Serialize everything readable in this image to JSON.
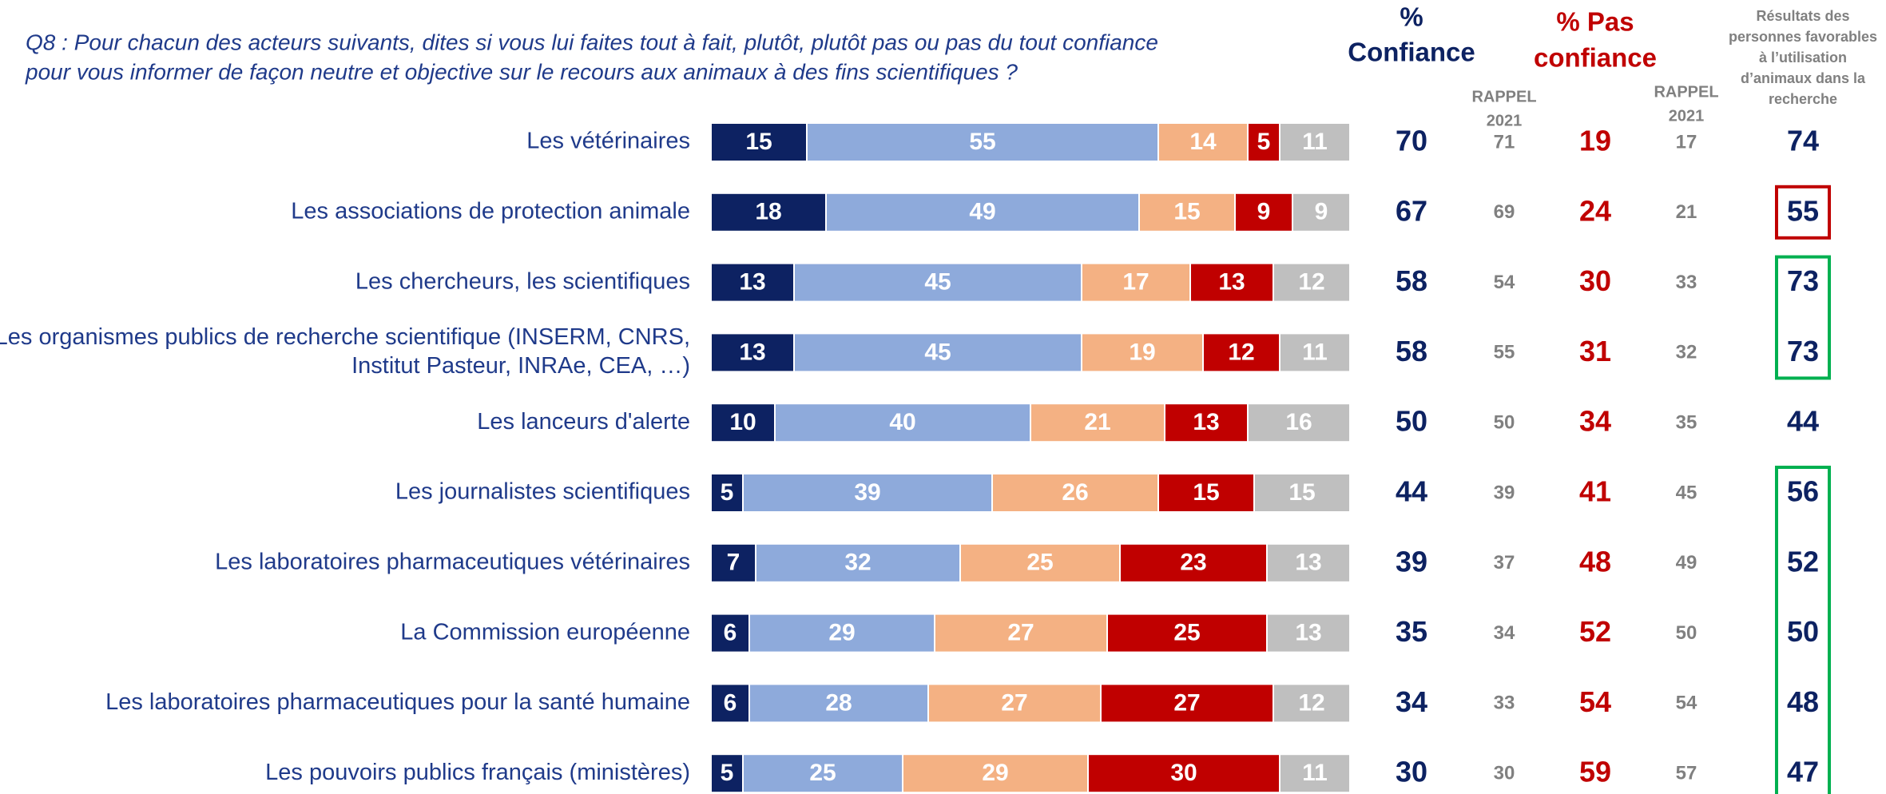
{
  "chart_data": {
    "type": "bar",
    "orientation": "horizontal",
    "stacked": true,
    "title": [
      "Q8 : Pour chacun des acteurs suivants, dites si vous lui faites tout à fait, plutôt, plutôt pas ou pas du tout confiance",
      "pour vous informer de façon neutre et objective sur le recours aux animaux à des fins scientifiques ?"
    ],
    "categories": [
      "Les vétérinaires",
      "Les associations de protection animale",
      "Les chercheurs, les scientifiques",
      [
        "Les organismes publics de recherche scientifique (INSERM, CNRS,",
        "Institut Pasteur, INRAe, CEA, …)"
      ],
      "Les lanceurs d'alerte",
      "Les journalistes scientifiques",
      "Les laboratoires pharmaceutiques vétérinaires",
      "La Commission européenne",
      "Les laboratoires pharmaceutiques pour la santé humaine",
      "Les pouvoirs publics français (ministères)"
    ],
    "series": [
      {
        "color": "#0d2262",
        "values": [
          15,
          18,
          13,
          13,
          10,
          5,
          7,
          6,
          6,
          5
        ]
      },
      {
        "color": "#8eaadb",
        "values": [
          55,
          49,
          45,
          45,
          40,
          39,
          32,
          29,
          28,
          25
        ]
      },
      {
        "color": "#f4b183",
        "values": [
          14,
          15,
          17,
          19,
          21,
          26,
          25,
          27,
          27,
          29
        ]
      },
      {
        "color": "#c00000",
        "values": [
          5,
          9,
          13,
          12,
          13,
          15,
          23,
          25,
          27,
          30
        ]
      },
      {
        "color": "#bfbfbf",
        "values": [
          11,
          9,
          12,
          11,
          16,
          15,
          13,
          13,
          12,
          11
        ]
      }
    ],
    "xlim": [
      0,
      100
    ],
    "columns": [
      {
        "header": [
          "%",
          "Confiance"
        ],
        "color": "#0d2262",
        "values": [
          70,
          67,
          58,
          58,
          50,
          44,
          39,
          35,
          34,
          30
        ]
      },
      {
        "header": [
          "RAPPEL",
          "2021"
        ],
        "color": "#808080",
        "values": [
          71,
          69,
          54,
          55,
          50,
          39,
          37,
          34,
          33,
          30
        ]
      },
      {
        "header": [
          "% Pas",
          "confiance"
        ],
        "color": "#c00000",
        "values": [
          19,
          24,
          30,
          31,
          34,
          41,
          48,
          52,
          54,
          59
        ]
      },
      {
        "header": [
          "RAPPEL",
          "2021"
        ],
        "color": "#808080",
        "values": [
          17,
          21,
          33,
          32,
          35,
          45,
          49,
          50,
          54,
          57
        ]
      },
      {
        "header": [
          "Résultats des",
          "personnes favorables",
          "à l’utilisation",
          "d’animaux dans la",
          "recherche"
        ],
        "color": "#0d2262",
        "values": [
          74,
          55,
          73,
          73,
          44,
          56,
          52,
          50,
          48,
          47
        ],
        "box_colors": [
          null,
          "#c00000",
          "#00b050",
          "#00b050",
          null,
          "#00b050",
          "#00b050",
          "#00b050",
          "#00b050",
          "#00b050"
        ]
      }
    ]
  }
}
